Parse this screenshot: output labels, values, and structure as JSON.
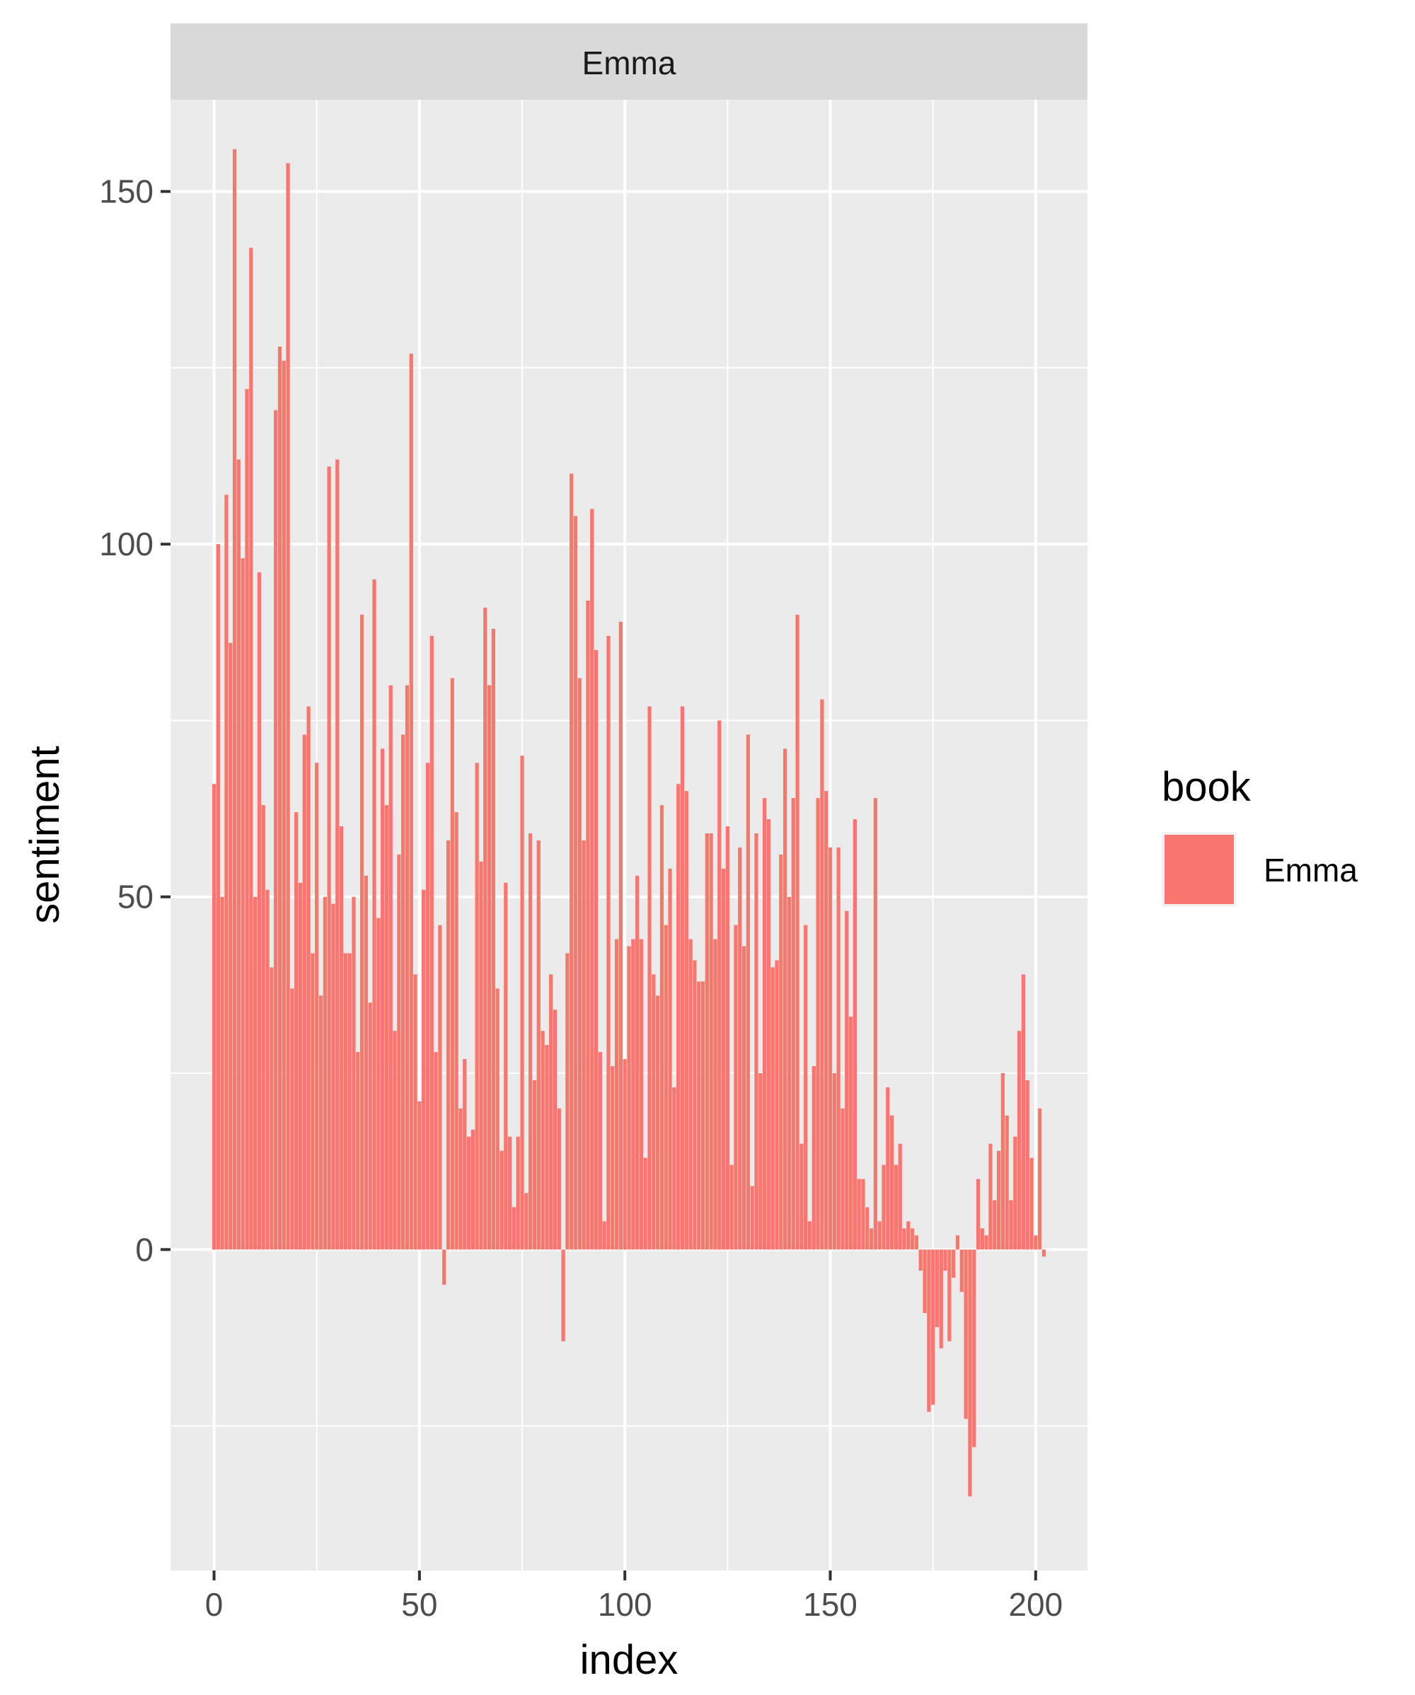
{
  "chart_data": {
    "type": "bar",
    "facet_label": "Emma",
    "xlabel": "index",
    "ylabel": "sentiment",
    "xlim": [
      -10.6,
      212.6
    ],
    "ylim": [
      -45.5,
      163.0
    ],
    "x_ticks": [
      0,
      50,
      100,
      150,
      200
    ],
    "x_tick_labels": [
      "0",
      "50",
      "100",
      "150",
      "200"
    ],
    "y_ticks": [
      0,
      50,
      100,
      150
    ],
    "y_tick_labels": [
      "0",
      "50",
      "100",
      "150"
    ],
    "grid": true,
    "legend": {
      "title": "book",
      "position": "right",
      "entries": [
        {
          "label": "Emma",
          "color": "#F8766D"
        }
      ]
    },
    "colors": {
      "bar": "#F8766D",
      "panel": "#EBEBEB",
      "strip": "#D9D9D9",
      "grid": "#FFFFFF"
    },
    "series": [
      {
        "name": "Emma",
        "x_start": 0,
        "values": [
          66,
          100,
          50,
          107,
          86,
          156,
          112,
          98,
          122,
          142,
          50,
          96,
          63,
          51,
          40,
          119,
          128,
          126,
          154,
          37,
          62,
          52,
          73,
          77,
          42,
          69,
          36,
          50,
          111,
          49,
          112,
          60,
          42,
          42,
          50,
          28,
          90,
          53,
          35,
          95,
          47,
          71,
          63,
          80,
          31,
          56,
          73,
          80,
          127,
          39,
          21,
          51,
          69,
          87,
          28,
          46,
          -5,
          58,
          81,
          62,
          20,
          27,
          16,
          17,
          69,
          55,
          91,
          80,
          88,
          37,
          14,
          52,
          16,
          6,
          16,
          70,
          8,
          59,
          24,
          58,
          31,
          29,
          39,
          34,
          20,
          -13,
          42,
          110,
          104,
          81,
          58,
          92,
          105,
          85,
          28,
          4,
          87,
          26,
          44,
          89,
          27,
          43,
          44,
          53,
          44,
          13,
          77,
          39,
          36,
          63,
          46,
          54,
          23,
          66,
          77,
          65,
          44,
          41,
          38,
          38,
          59,
          59,
          44,
          75,
          54,
          60,
          12,
          46,
          57,
          43,
          73,
          9,
          59,
          25,
          64,
          61,
          40,
          41,
          56,
          71,
          50,
          64,
          90,
          15,
          46,
          4,
          26,
          64,
          78,
          65,
          57,
          25,
          57,
          20,
          48,
          33,
          61,
          10,
          10,
          6,
          3,
          64,
          4,
          12,
          23,
          19,
          12,
          15,
          3,
          4,
          3,
          2,
          -3,
          -9,
          -23,
          -22,
          -11,
          -14,
          -3,
          -13,
          -4,
          2,
          -6,
          -24,
          -35,
          -28,
          10,
          3,
          2,
          15,
          7,
          14,
          25,
          19,
          7,
          16,
          31,
          39,
          24,
          13,
          2,
          20,
          -1
        ]
      }
    ]
  }
}
